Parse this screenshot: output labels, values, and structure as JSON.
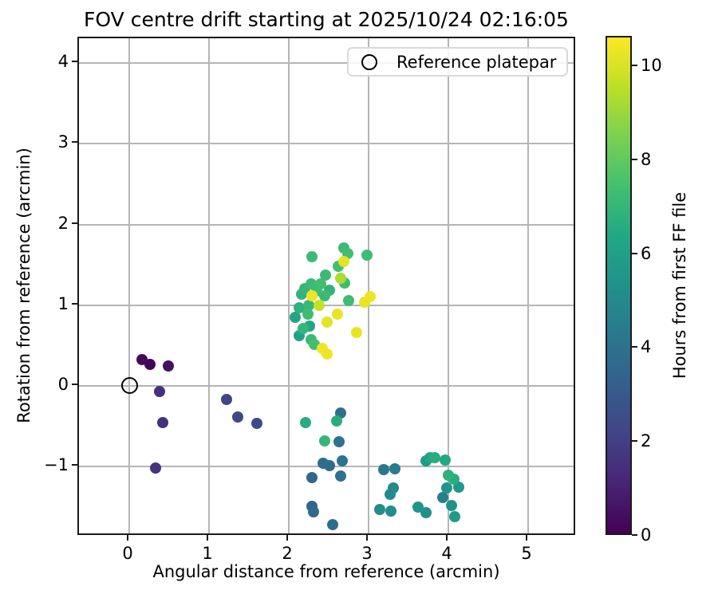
{
  "title": "FOV centre drift starting at 2025/10/24 02:16:05",
  "legend": {
    "label": "Reference platepar"
  },
  "chart_data": {
    "type": "scatter",
    "title": "FOV centre drift starting at 2025/10/24 02:16:05",
    "xlabel": "Angular distance from reference (arcmin)",
    "ylabel": "Rotation from reference (arcmin)",
    "xlim": [
      -0.63,
      5.61
    ],
    "ylim": [
      -1.87,
      4.31
    ],
    "xticks": [
      0,
      1,
      2,
      3,
      4,
      5
    ],
    "yticks": [
      -1,
      0,
      1,
      2,
      3,
      4
    ],
    "grid": true,
    "grid_color": "#b5b5b5",
    "marker_color_mode": "colormap",
    "reference_point": {
      "x": 0,
      "y": 0,
      "label": "Reference platepar"
    },
    "colorbar": {
      "label": "Hours from first FF file",
      "vmin": 0,
      "vmax": 10.63,
      "ticks": [
        0,
        2,
        4,
        6,
        8,
        10
      ],
      "colormap": "viridis",
      "stops": [
        [
          0.0,
          "#440154"
        ],
        [
          0.1,
          "#482475"
        ],
        [
          0.2,
          "#414487"
        ],
        [
          0.3,
          "#355f8d"
        ],
        [
          0.4,
          "#2a788e"
        ],
        [
          0.5,
          "#21918c"
        ],
        [
          0.6,
          "#22a884"
        ],
        [
          0.7,
          "#44bf70"
        ],
        [
          0.8,
          "#7ad151"
        ],
        [
          0.9,
          "#bddf26"
        ],
        [
          1.0,
          "#fde725"
        ]
      ]
    },
    "points": [
      [
        0.16,
        0.33,
        0.2
      ],
      [
        0.26,
        0.27,
        0.1
      ],
      [
        0.49,
        0.25,
        0.4
      ],
      [
        0.38,
        -0.07,
        1.5
      ],
      [
        0.42,
        -0.46,
        1.5
      ],
      [
        0.33,
        -1.02,
        1.6
      ],
      [
        1.22,
        -0.17,
        2.2
      ],
      [
        1.36,
        -0.39,
        2.3
      ],
      [
        1.6,
        -0.47,
        2.4
      ],
      [
        2.29,
        1.6,
        7.2
      ],
      [
        2.69,
        1.71,
        7.2
      ],
      [
        2.74,
        1.64,
        7.4
      ],
      [
        2.98,
        1.62,
        7.3
      ],
      [
        2.69,
        1.54,
        10.2
      ],
      [
        2.62,
        1.48,
        7.4
      ],
      [
        2.46,
        1.37,
        7.2
      ],
      [
        2.65,
        1.33,
        9.3
      ],
      [
        2.7,
        1.27,
        7.3
      ],
      [
        2.4,
        1.26,
        7.4
      ],
      [
        2.51,
        1.19,
        6.9
      ],
      [
        2.28,
        1.26,
        7.2
      ],
      [
        2.2,
        1.21,
        7.0
      ],
      [
        2.35,
        1.18,
        7.3
      ],
      [
        2.16,
        1.14,
        6.9
      ],
      [
        2.29,
        1.12,
        10.4
      ],
      [
        2.45,
        1.12,
        7.2
      ],
      [
        2.75,
        1.06,
        7.3
      ],
      [
        2.38,
        1.0,
        9.7
      ],
      [
        2.25,
        1.0,
        7.1
      ],
      [
        2.13,
        0.97,
        6.8
      ],
      [
        2.95,
        1.04,
        10.3
      ],
      [
        3.02,
        1.11,
        10.4
      ],
      [
        2.08,
        0.85,
        6.2
      ],
      [
        2.24,
        0.89,
        7.3
      ],
      [
        2.61,
        0.89,
        10.3
      ],
      [
        2.48,
        0.79,
        10.2
      ],
      [
        2.18,
        0.71,
        7.0
      ],
      [
        2.26,
        0.74,
        6.3
      ],
      [
        2.85,
        0.66,
        10.3
      ],
      [
        2.13,
        0.62,
        6.1
      ],
      [
        2.28,
        0.57,
        7.1
      ],
      [
        2.32,
        0.51,
        7.4
      ],
      [
        2.42,
        0.46,
        10.4
      ],
      [
        2.48,
        0.39,
        10.4
      ],
      [
        2.21,
        -0.46,
        6.6
      ],
      [
        2.65,
        -0.34,
        3.9
      ],
      [
        2.6,
        -0.44,
        6.6
      ],
      [
        2.45,
        -0.68,
        7.0
      ],
      [
        2.63,
        -0.69,
        4.0
      ],
      [
        2.43,
        -0.96,
        3.8
      ],
      [
        2.51,
        -0.99,
        3.6
      ],
      [
        2.67,
        -0.93,
        4.0
      ],
      [
        2.29,
        -1.14,
        3.5
      ],
      [
        2.65,
        -1.12,
        3.9
      ],
      [
        2.29,
        -1.49,
        3.5
      ],
      [
        2.31,
        -1.56,
        3.6
      ],
      [
        2.55,
        -1.72,
        3.8
      ],
      [
        3.19,
        -1.04,
        4.2
      ],
      [
        3.33,
        -1.03,
        4.4
      ],
      [
        3.31,
        -1.27,
        5.0
      ],
      [
        3.27,
        -1.35,
        5.0
      ],
      [
        3.14,
        -1.53,
        5.1
      ],
      [
        3.28,
        -1.55,
        5.2
      ],
      [
        3.62,
        -1.5,
        5.4
      ],
      [
        3.72,
        -1.57,
        5.3
      ],
      [
        3.72,
        -0.93,
        5.8
      ],
      [
        3.77,
        -0.89,
        6.2
      ],
      [
        3.83,
        -0.89,
        6.6
      ],
      [
        3.96,
        -0.92,
        6.4
      ],
      [
        4.0,
        -1.11,
        6.8
      ],
      [
        4.07,
        -1.16,
        6.6
      ],
      [
        3.98,
        -1.27,
        5.5
      ],
      [
        4.13,
        -1.26,
        5.6
      ],
      [
        3.93,
        -1.39,
        4.6
      ],
      [
        4.04,
        -1.48,
        5.4
      ],
      [
        4.08,
        -1.62,
        5.7
      ]
    ]
  }
}
